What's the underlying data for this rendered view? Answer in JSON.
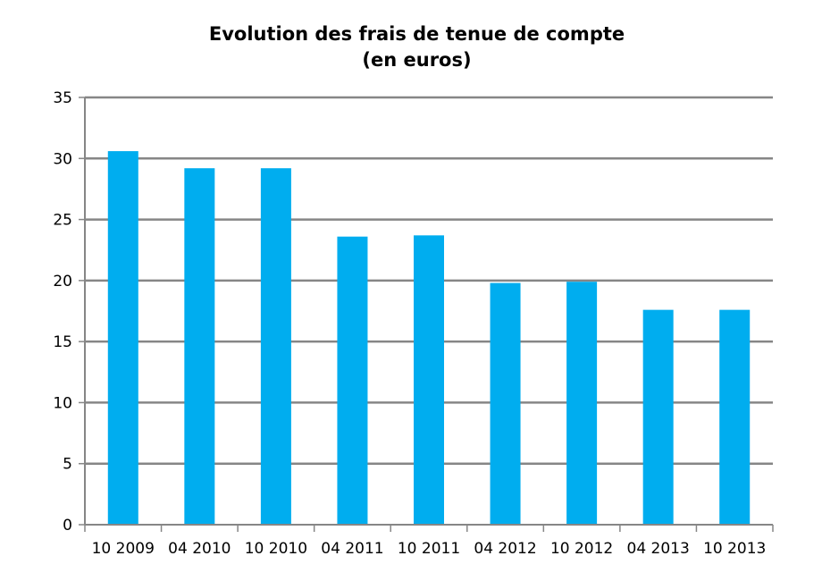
{
  "chart_data": {
    "type": "bar",
    "title_lines": [
      "Evolution des frais de tenue de compte",
      "(en euros)"
    ],
    "xlabel": "",
    "ylabel": "",
    "categories": [
      "10 2009",
      "04 2010",
      "10 2010",
      "04 2011",
      "10 2011",
      "04 2012",
      "10 2012",
      "04 2013",
      "10 2013"
    ],
    "values": [
      30.6,
      29.2,
      29.2,
      23.6,
      23.7,
      19.8,
      19.9,
      17.6,
      17.6
    ],
    "ylim": [
      0,
      35
    ],
    "yticks": [
      "0",
      "5",
      "10",
      "15",
      "20",
      "25",
      "30",
      "35"
    ],
    "grid": true,
    "legend": "none",
    "colors": {
      "bar": "#00ADEF",
      "grid": "#868686",
      "axis": "#868686"
    }
  }
}
